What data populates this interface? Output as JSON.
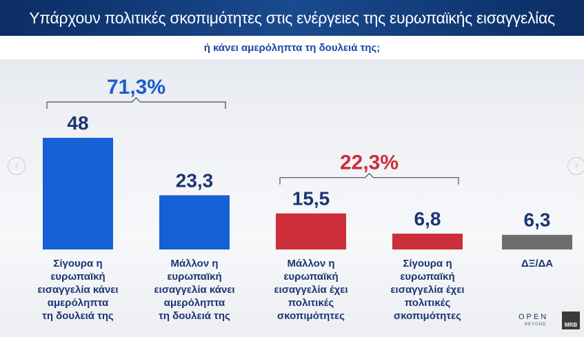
{
  "header": {
    "title": "Υπάρχουν πολιτικές σκοπιμότητες στις ενέργειες της ευρωπαϊκής εισαγγελίας",
    "subtitle": "ή κάνει αμερόληπτα τη δουλειά της;"
  },
  "nav": {
    "prev_icon": "chevron-left-icon",
    "next_icon": "chevron-right-icon"
  },
  "colors": {
    "blue": "#1560d4",
    "red": "#cc2e3a",
    "gray": "#6e6e6e",
    "value_text": "#1a3670",
    "group_blue": "#1a5bd0",
    "group_red": "#cc2e3a"
  },
  "chart_data": {
    "type": "bar",
    "title": "Υπάρχουν πολιτικές σκοπιμότητες στις ενέργειες της ευρωπαϊκής εισαγγελίας",
    "subtitle": "ή κάνει αμερόληπτα τη δουλειά της;",
    "categories": [
      [
        "Σίγουρα η",
        "ευρωπαϊκή",
        "εισαγγελία κάνει",
        "αμερόληπτα",
        "τη δουλειά της"
      ],
      [
        "Μάλλον η",
        "ευρωπαϊκή",
        "εισαγγελία κάνει",
        "αμερόληπτα",
        "τη δουλειά της"
      ],
      [
        "Μάλλον η",
        "ευρωπαϊκή",
        "εισαγγελία έχει",
        "πολιτικές",
        "σκοπιμότητες"
      ],
      [
        "Σίγουρα η",
        "ευρωπαϊκή",
        "εισαγγελία έχει",
        "πολιτικές",
        "σκοπιμότητες"
      ],
      [
        "ΔΞ/ΔΑ"
      ]
    ],
    "values": [
      48,
      23.3,
      15.5,
      6.8,
      6.3
    ],
    "value_labels": [
      "48",
      "23,3",
      "15,5",
      "6,8",
      "6,3"
    ],
    "bar_colors": [
      "#1560d4",
      "#1560d4",
      "#cc2e3a",
      "#cc2e3a",
      "#6e6e6e"
    ],
    "groups": [
      {
        "label": "71,3%",
        "bars": [
          0,
          1
        ],
        "color": "#1a5bd0"
      },
      {
        "label": "22,3%",
        "bars": [
          2,
          3
        ],
        "color": "#cc2e3a"
      }
    ],
    "ylim": [
      0,
      48
    ],
    "grid": false,
    "legend": "none"
  },
  "branding": {
    "open": "OPEN",
    "beyond": "BEYOND",
    "mrb": "MRB"
  }
}
